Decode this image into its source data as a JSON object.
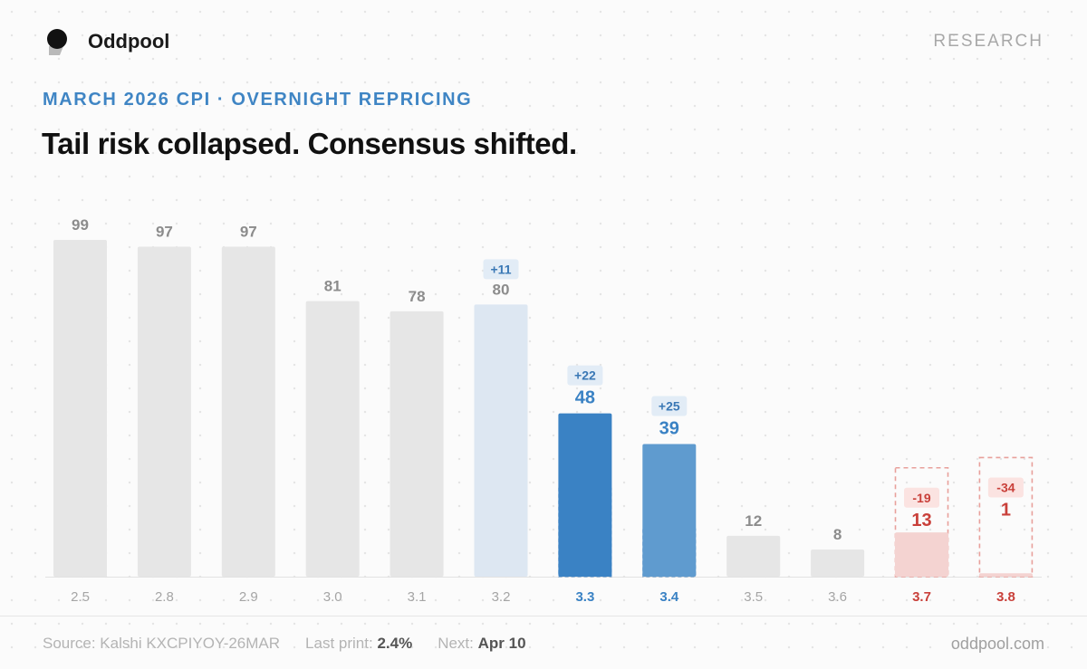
{
  "header": {
    "brand": "Oddpool",
    "section": "RESEARCH",
    "eyebrow": "MARCH 2026 CPI · OVERNIGHT REPRICING",
    "headline": "Tail risk collapsed. Consensus shifted.",
    "logo_icon": "oddpool-logo-icon"
  },
  "chart_data": {
    "type": "bar",
    "categories": [
      "2.5",
      "2.8",
      "2.9",
      "3.0",
      "3.1",
      "3.2",
      "3.3",
      "3.4",
      "3.5",
      "3.6",
      "3.7",
      "3.8"
    ],
    "values": [
      99,
      97,
      97,
      81,
      78,
      80,
      48,
      39,
      12,
      8,
      13,
      1
    ],
    "changes": [
      null,
      null,
      null,
      null,
      null,
      "+11",
      "+22",
      "+25",
      null,
      null,
      "-19",
      "-34"
    ],
    "ylim": [
      0,
      100
    ],
    "grid": false
  },
  "footer": {
    "source_label": "Source: Kalshi KXCPIYOY-26MAR",
    "last_label": "Last print:",
    "last_value": "2.4%",
    "next_label": "Next:",
    "next_value": "Apr 10",
    "site": "oddpool.com"
  },
  "colors": {
    "gray_bar": "#e6e6e6",
    "light_blue_bar": "#dde7f2",
    "blue_bar": "#3a82c4",
    "mid_blue_bar": "#5f9bcf",
    "red": "#c9403a",
    "red_fill": "#f4d3d1"
  }
}
